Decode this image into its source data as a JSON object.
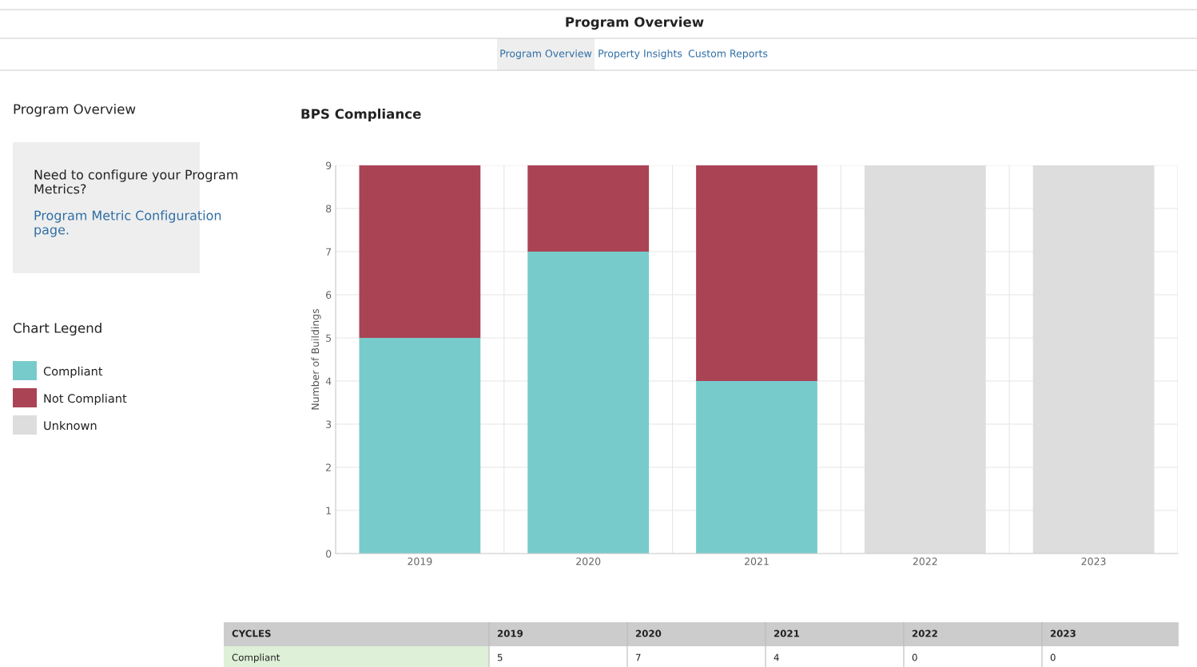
{
  "chart_data": {
    "type": "bar",
    "title": "BPS Compliance",
    "ylabel": "Number of Buildings",
    "categories": [
      "2019",
      "2020",
      "2021",
      "2022",
      "2023"
    ],
    "stacked": true,
    "series": [
      {
        "name": "Compliant",
        "color": "#78cbcb",
        "values": [
          5,
          7,
          4,
          0,
          0
        ],
        "value_labels": [
          "5",
          "7",
          "4",
          "0",
          "0"
        ]
      },
      {
        "name": "Not Compliant",
        "color": "#aa4455",
        "values": [
          4,
          2,
          5,
          0,
          0
        ]
      },
      {
        "name": "Unknown",
        "color": "#dddddd",
        "values": [
          0,
          0,
          0,
          9,
          9
        ]
      }
    ],
    "ylim": [
      0,
      9
    ],
    "yticks": [
      0,
      1,
      2,
      3,
      4,
      5,
      6,
      7,
      8,
      9
    ],
    "grid": true,
    "legend": "left",
    "legend_title": "Chart Legend",
    "annotations": [
      "Program Overview",
      "Program Overview",
      "Property Insights",
      "Custom Reports",
      "Program Overview",
      "Need to configure your Program Metrics?",
      "Program Metric Configuration page.",
      "CYCLES"
    ]
  }
}
